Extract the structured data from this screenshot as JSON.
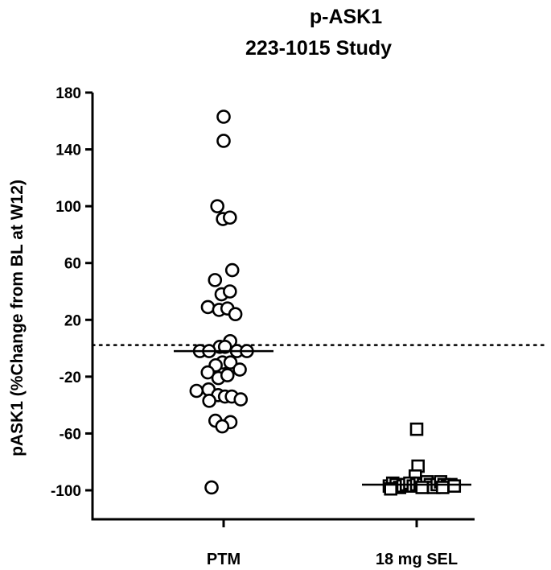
{
  "chart_data": {
    "type": "scatter",
    "title": [
      "p-ASK1",
      "223-1015 Study"
    ],
    "xlabel": "",
    "ylabel": "pASK1 (%Change from BL at W12)",
    "ylim": [
      -120,
      180
    ],
    "yticks": [
      180,
      140,
      100,
      60,
      20,
      -20,
      -60,
      -100
    ],
    "yticklabels": [
      "180",
      "140",
      "100",
      "60",
      "20",
      "-20",
      "-60",
      "-100"
    ],
    "categories": [
      "PTM",
      "18 mg SEL"
    ],
    "reference_line": {
      "y": 0,
      "style": "dotted"
    },
    "series": [
      {
        "name": "PTM",
        "marker": "circle",
        "median": -2,
        "points": [
          {
            "offset": 0.0,
            "y": 163
          },
          {
            "offset": 0.0,
            "y": 146
          },
          {
            "offset": -0.46,
            "y": 100
          },
          {
            "offset": -0.05,
            "y": 91
          },
          {
            "offset": 0.46,
            "y": 92
          },
          {
            "offset": 0.63,
            "y": 55
          },
          {
            "offset": -0.63,
            "y": 48
          },
          {
            "offset": -0.15,
            "y": 38
          },
          {
            "offset": 0.46,
            "y": 40
          },
          {
            "offset": -1.15,
            "y": 29
          },
          {
            "offset": -0.33,
            "y": 27
          },
          {
            "offset": 0.28,
            "y": 28
          },
          {
            "offset": 0.86,
            "y": 24
          },
          {
            "offset": 0.48,
            "y": 5
          },
          {
            "offset": -0.28,
            "y": 1
          },
          {
            "offset": 0.1,
            "y": 1
          },
          {
            "offset": -1.73,
            "y": -2
          },
          {
            "offset": -1.06,
            "y": -2
          },
          {
            "offset": 0.97,
            "y": -2
          },
          {
            "offset": 1.7,
            "y": -2
          },
          {
            "offset": -0.08,
            "y": -10
          },
          {
            "offset": -0.58,
            "y": -12
          },
          {
            "offset": 0.5,
            "y": -10
          },
          {
            "offset": 1.18,
            "y": -15
          },
          {
            "offset": -1.16,
            "y": -17
          },
          {
            "offset": -0.38,
            "y": -21
          },
          {
            "offset": 0.28,
            "y": -19
          },
          {
            "offset": -1.1,
            "y": -29
          },
          {
            "offset": -1.98,
            "y": -30
          },
          {
            "offset": -0.4,
            "y": -33
          },
          {
            "offset": 0.1,
            "y": -34
          },
          {
            "offset": 0.6,
            "y": -34
          },
          {
            "offset": 1.25,
            "y": -36
          },
          {
            "offset": -1.05,
            "y": -37
          },
          {
            "offset": -0.6,
            "y": -51
          },
          {
            "offset": 0.5,
            "y": -52
          },
          {
            "offset": -0.1,
            "y": -55
          },
          {
            "offset": -0.88,
            "y": -98
          }
        ]
      },
      {
        "name": "18 mg SEL",
        "marker": "square",
        "median": -96,
        "points": [
          {
            "offset": 0.0,
            "y": -57
          },
          {
            "offset": 0.1,
            "y": -83
          },
          {
            "offset": -0.1,
            "y": -90
          },
          {
            "offset": -2.0,
            "y": -97
          },
          {
            "offset": -1.75,
            "y": -95
          },
          {
            "offset": -1.5,
            "y": -96
          },
          {
            "offset": -1.25,
            "y": -98
          },
          {
            "offset": -1.0,
            "y": -97
          },
          {
            "offset": -0.75,
            "y": -96
          },
          {
            "offset": -0.5,
            "y": -95
          },
          {
            "offset": -0.25,
            "y": -97
          },
          {
            "offset": 0.0,
            "y": -96
          },
          {
            "offset": 0.25,
            "y": -95
          },
          {
            "offset": 0.5,
            "y": -96
          },
          {
            "offset": 0.75,
            "y": -94
          },
          {
            "offset": 1.0,
            "y": -96
          },
          {
            "offset": 1.25,
            "y": -98
          },
          {
            "offset": 1.5,
            "y": -96
          },
          {
            "offset": 1.75,
            "y": -94
          },
          {
            "offset": 2.0,
            "y": -96
          },
          {
            "offset": 2.25,
            "y": -97
          },
          {
            "offset": 2.5,
            "y": -96
          },
          {
            "offset": 2.75,
            "y": -97
          },
          {
            "offset": -1.9,
            "y": -99
          },
          {
            "offset": 0.4,
            "y": -98
          },
          {
            "offset": 1.9,
            "y": -98
          }
        ]
      }
    ]
  }
}
